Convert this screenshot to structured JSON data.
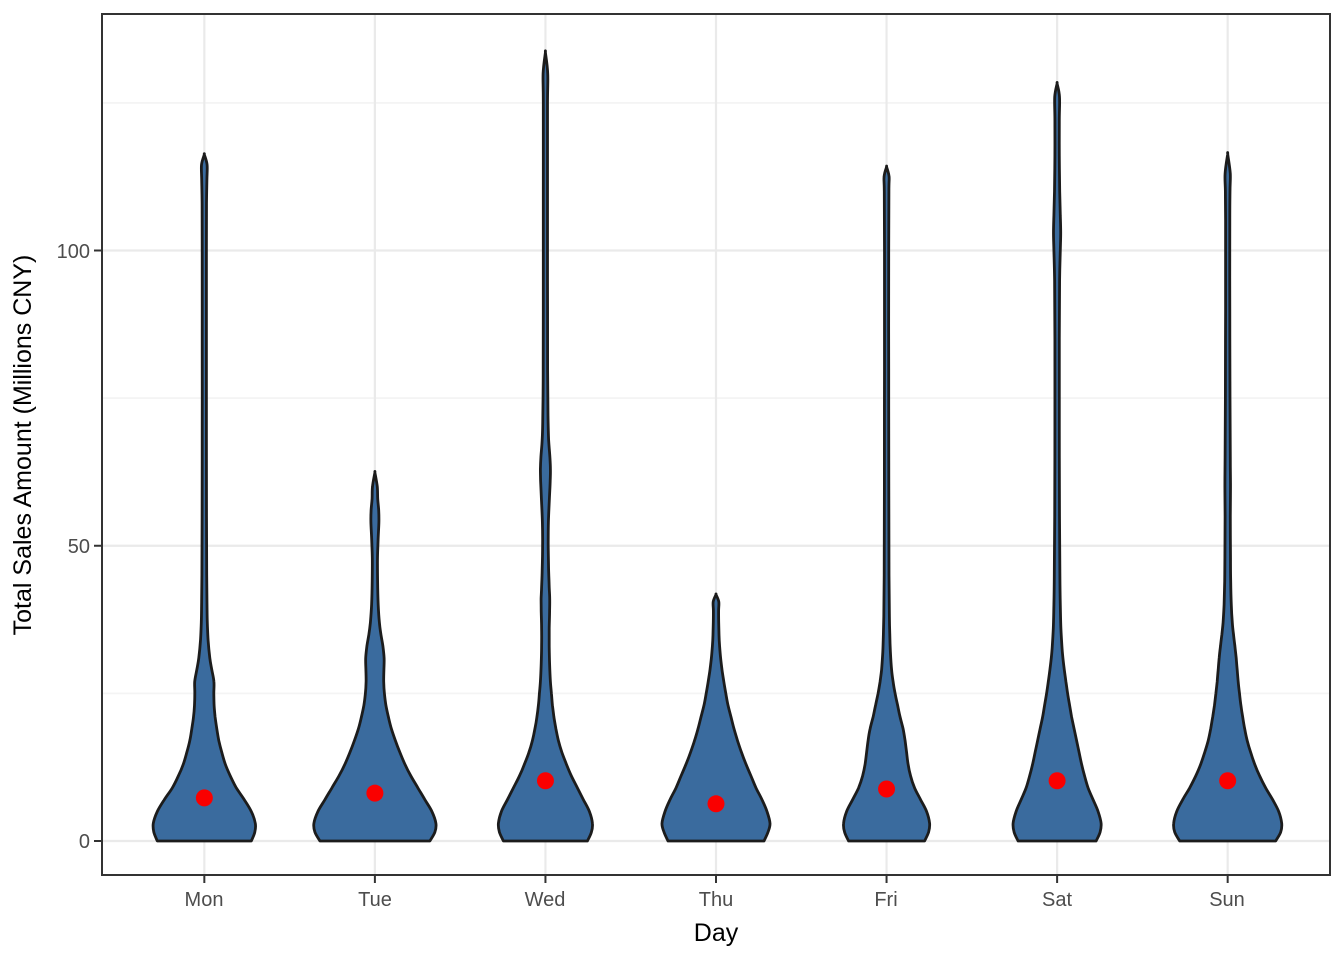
{
  "figure": {
    "kind": "violin-plot",
    "background": "#ffffff"
  },
  "chart_data": {
    "type": "violin",
    "title": "",
    "xlabel": "Day",
    "ylabel": "Total Sales Amount (Millions CNY)",
    "categories": [
      "Mon",
      "Tue",
      "Wed",
      "Thu",
      "Fri",
      "Sat",
      "Sun"
    ],
    "yticks": [
      0,
      50,
      100
    ],
    "ytick_labels": [
      "0",
      "50",
      "100"
    ],
    "yticks_minor": [
      25,
      75,
      125
    ],
    "ylim": [
      -5.8,
      140
    ],
    "legend": "none",
    "grid": "on",
    "series": [
      {
        "name": "Mon",
        "mean": 7.3,
        "min": 0,
        "max": 116.2,
        "profile": [
          [
            0,
            47
          ],
          [
            1.5,
            50.5
          ],
          [
            3,
            51
          ],
          [
            5,
            47
          ],
          [
            7,
            40
          ],
          [
            9,
            32
          ],
          [
            11,
            26
          ],
          [
            13,
            21
          ],
          [
            15,
            17.5
          ],
          [
            17,
            14.5
          ],
          [
            19,
            12.5
          ],
          [
            21,
            10.8
          ],
          [
            23,
            9.8
          ],
          [
            25,
            9.5
          ],
          [
            27,
            9.6
          ],
          [
            29,
            7.5
          ],
          [
            31,
            5.5
          ],
          [
            34,
            3.8
          ],
          [
            37,
            3
          ],
          [
            40,
            2.7
          ],
          [
            45,
            2.4
          ],
          [
            55,
            2.2
          ],
          [
            70,
            2.1
          ],
          [
            85,
            2.1
          ],
          [
            100,
            2.1
          ],
          [
            108,
            2.2
          ],
          [
            112,
            2.6
          ],
          [
            114.5,
            2.8
          ],
          [
            116.2,
            0.1
          ]
        ]
      },
      {
        "name": "Tue",
        "mean": 8.1,
        "min": 0,
        "max": 62.3,
        "profile": [
          [
            0,
            55
          ],
          [
            1.5,
            60
          ],
          [
            3,
            61
          ],
          [
            5,
            57
          ],
          [
            7,
            50
          ],
          [
            9,
            43
          ],
          [
            11,
            36
          ],
          [
            13,
            30
          ],
          [
            15,
            25
          ],
          [
            17,
            20.5
          ],
          [
            19,
            16.5
          ],
          [
            21,
            13.5
          ],
          [
            23,
            11
          ],
          [
            25,
            9.5
          ],
          [
            27,
            8.8
          ],
          [
            29,
            9
          ],
          [
            31,
            9.2
          ],
          [
            33,
            8
          ],
          [
            35,
            6
          ],
          [
            37,
            4.5
          ],
          [
            40,
            3.3
          ],
          [
            44,
            2.7
          ],
          [
            48,
            2.6
          ],
          [
            51,
            3.2
          ],
          [
            54,
            4
          ],
          [
            56,
            3.8
          ],
          [
            58,
            2.8
          ],
          [
            60,
            2.4
          ],
          [
            62.3,
            0.1
          ]
        ]
      },
      {
        "name": "Wed",
        "mean": 10.2,
        "min": 0,
        "max": 133.4,
        "profile": [
          [
            0,
            42
          ],
          [
            1.5,
            46
          ],
          [
            3,
            47
          ],
          [
            5,
            44
          ],
          [
            7,
            38
          ],
          [
            9,
            32
          ],
          [
            11,
            26
          ],
          [
            13,
            21
          ],
          [
            15,
            16.5
          ],
          [
            17,
            13
          ],
          [
            19,
            10.5
          ],
          [
            21,
            8.5
          ],
          [
            23,
            7
          ],
          [
            25,
            6
          ],
          [
            27,
            5
          ],
          [
            30,
            4.2
          ],
          [
            33,
            3.8
          ],
          [
            36,
            3.8
          ],
          [
            39,
            4.2
          ],
          [
            41,
            4.3
          ],
          [
            43,
            3.8
          ],
          [
            46,
            3.2
          ],
          [
            50,
            2.8
          ],
          [
            54,
            3
          ],
          [
            58,
            4
          ],
          [
            61,
            4.8
          ],
          [
            63,
            5
          ],
          [
            65,
            4.5
          ],
          [
            68,
            3.2
          ],
          [
            72,
            2.6
          ],
          [
            80,
            2.2
          ],
          [
            95,
            2.1
          ],
          [
            110,
            2.1
          ],
          [
            125,
            2.1
          ],
          [
            130,
            2.3
          ],
          [
            133.4,
            0.1
          ]
        ]
      },
      {
        "name": "Thu",
        "mean": 6.3,
        "min": 0,
        "max": 41.7,
        "profile": [
          [
            0,
            48
          ],
          [
            1.5,
            52
          ],
          [
            3,
            54
          ],
          [
            5,
            51
          ],
          [
            7,
            46
          ],
          [
            9,
            40
          ],
          [
            11,
            35
          ],
          [
            13,
            30
          ],
          [
            15,
            25.5
          ],
          [
            17,
            21.5
          ],
          [
            19,
            18
          ],
          [
            21,
            15
          ],
          [
            23,
            12
          ],
          [
            25,
            9.8
          ],
          [
            27,
            7.8
          ],
          [
            29,
            6
          ],
          [
            31,
            4.6
          ],
          [
            33,
            3.6
          ],
          [
            35,
            3
          ],
          [
            37,
            2.7
          ],
          [
            39,
            2.6
          ],
          [
            40.5,
            2.8
          ],
          [
            41.7,
            0.1
          ]
        ]
      },
      {
        "name": "Fri",
        "mean": 8.8,
        "min": 0,
        "max": 114.1,
        "profile": [
          [
            0,
            38
          ],
          [
            1.5,
            42
          ],
          [
            3,
            43
          ],
          [
            5,
            40
          ],
          [
            7,
            34
          ],
          [
            9,
            28
          ],
          [
            11,
            24
          ],
          [
            13,
            21.5
          ],
          [
            15,
            20
          ],
          [
            17,
            18.5
          ],
          [
            19,
            16.5
          ],
          [
            21,
            13.5
          ],
          [
            23,
            11
          ],
          [
            25,
            8.5
          ],
          [
            27,
            6.5
          ],
          [
            29,
            5
          ],
          [
            32,
            3.8
          ],
          [
            35,
            3.2
          ],
          [
            38,
            2.8
          ],
          [
            45,
            2.4
          ],
          [
            60,
            2.2
          ],
          [
            80,
            2.1
          ],
          [
            100,
            2.1
          ],
          [
            110,
            2.3
          ],
          [
            112.5,
            2.5
          ],
          [
            114.1,
            0.1
          ]
        ]
      },
      {
        "name": "Sat",
        "mean": 10.2,
        "min": 0,
        "max": 128.2,
        "profile": [
          [
            0,
            39
          ],
          [
            1.5,
            43
          ],
          [
            3,
            44
          ],
          [
            5,
            41
          ],
          [
            7,
            36
          ],
          [
            9,
            31
          ],
          [
            11,
            27.5
          ],
          [
            13,
            24.5
          ],
          [
            15,
            22
          ],
          [
            17,
            19.5
          ],
          [
            19,
            17
          ],
          [
            21,
            14.5
          ],
          [
            23,
            12.5
          ],
          [
            25,
            10.5
          ],
          [
            27,
            8.8
          ],
          [
            29,
            7.2
          ],
          [
            31,
            5.8
          ],
          [
            33,
            4.8
          ],
          [
            36,
            3.8
          ],
          [
            40,
            3.2
          ],
          [
            45,
            2.8
          ],
          [
            55,
            2.4
          ],
          [
            70,
            2.2
          ],
          [
            85,
            2.2
          ],
          [
            95,
            2.5
          ],
          [
            100,
            3.2
          ],
          [
            103,
            3.6
          ],
          [
            106,
            3.2
          ],
          [
            110,
            2.6
          ],
          [
            116,
            2.2
          ],
          [
            122,
            2.2
          ],
          [
            126,
            2.4
          ],
          [
            128.2,
            0.1
          ]
        ]
      },
      {
        "name": "Sun",
        "mean": 10.2,
        "min": 0,
        "max": 116.2,
        "profile": [
          [
            0,
            48
          ],
          [
            1.5,
            53
          ],
          [
            3,
            54
          ],
          [
            5,
            51
          ],
          [
            7,
            45
          ],
          [
            9,
            38
          ],
          [
            11,
            32
          ],
          [
            13,
            27
          ],
          [
            15,
            23
          ],
          [
            17,
            19.5
          ],
          [
            19,
            17
          ],
          [
            21,
            15
          ],
          [
            23,
            13.2
          ],
          [
            25,
            11.8
          ],
          [
            27,
            10.5
          ],
          [
            29,
            9.5
          ],
          [
            31,
            8.5
          ],
          [
            33,
            7.2
          ],
          [
            35,
            5.8
          ],
          [
            37,
            4.6
          ],
          [
            40,
            3.6
          ],
          [
            44,
            3
          ],
          [
            48,
            2.8
          ],
          [
            55,
            2.6
          ],
          [
            60,
            2.8
          ],
          [
            65,
            2.6
          ],
          [
            75,
            2.3
          ],
          [
            90,
            2.1
          ],
          [
            105,
            2.1
          ],
          [
            110,
            2.3
          ],
          [
            113,
            2.6
          ],
          [
            116.2,
            0.1
          ]
        ]
      }
    ]
  },
  "style": {
    "violin_fill": "#3a6b9e",
    "violin_stroke": "#1c1c1c",
    "mean_dot_color": "#fa0000",
    "grid_major_color": "#eaeaea",
    "grid_minor_color": "#f4f4f4",
    "panel_border_color": "#333333",
    "tick_mark_color": "#333333",
    "tick_label_color": "#4d4d4d",
    "axis_title_color": "#000000"
  }
}
